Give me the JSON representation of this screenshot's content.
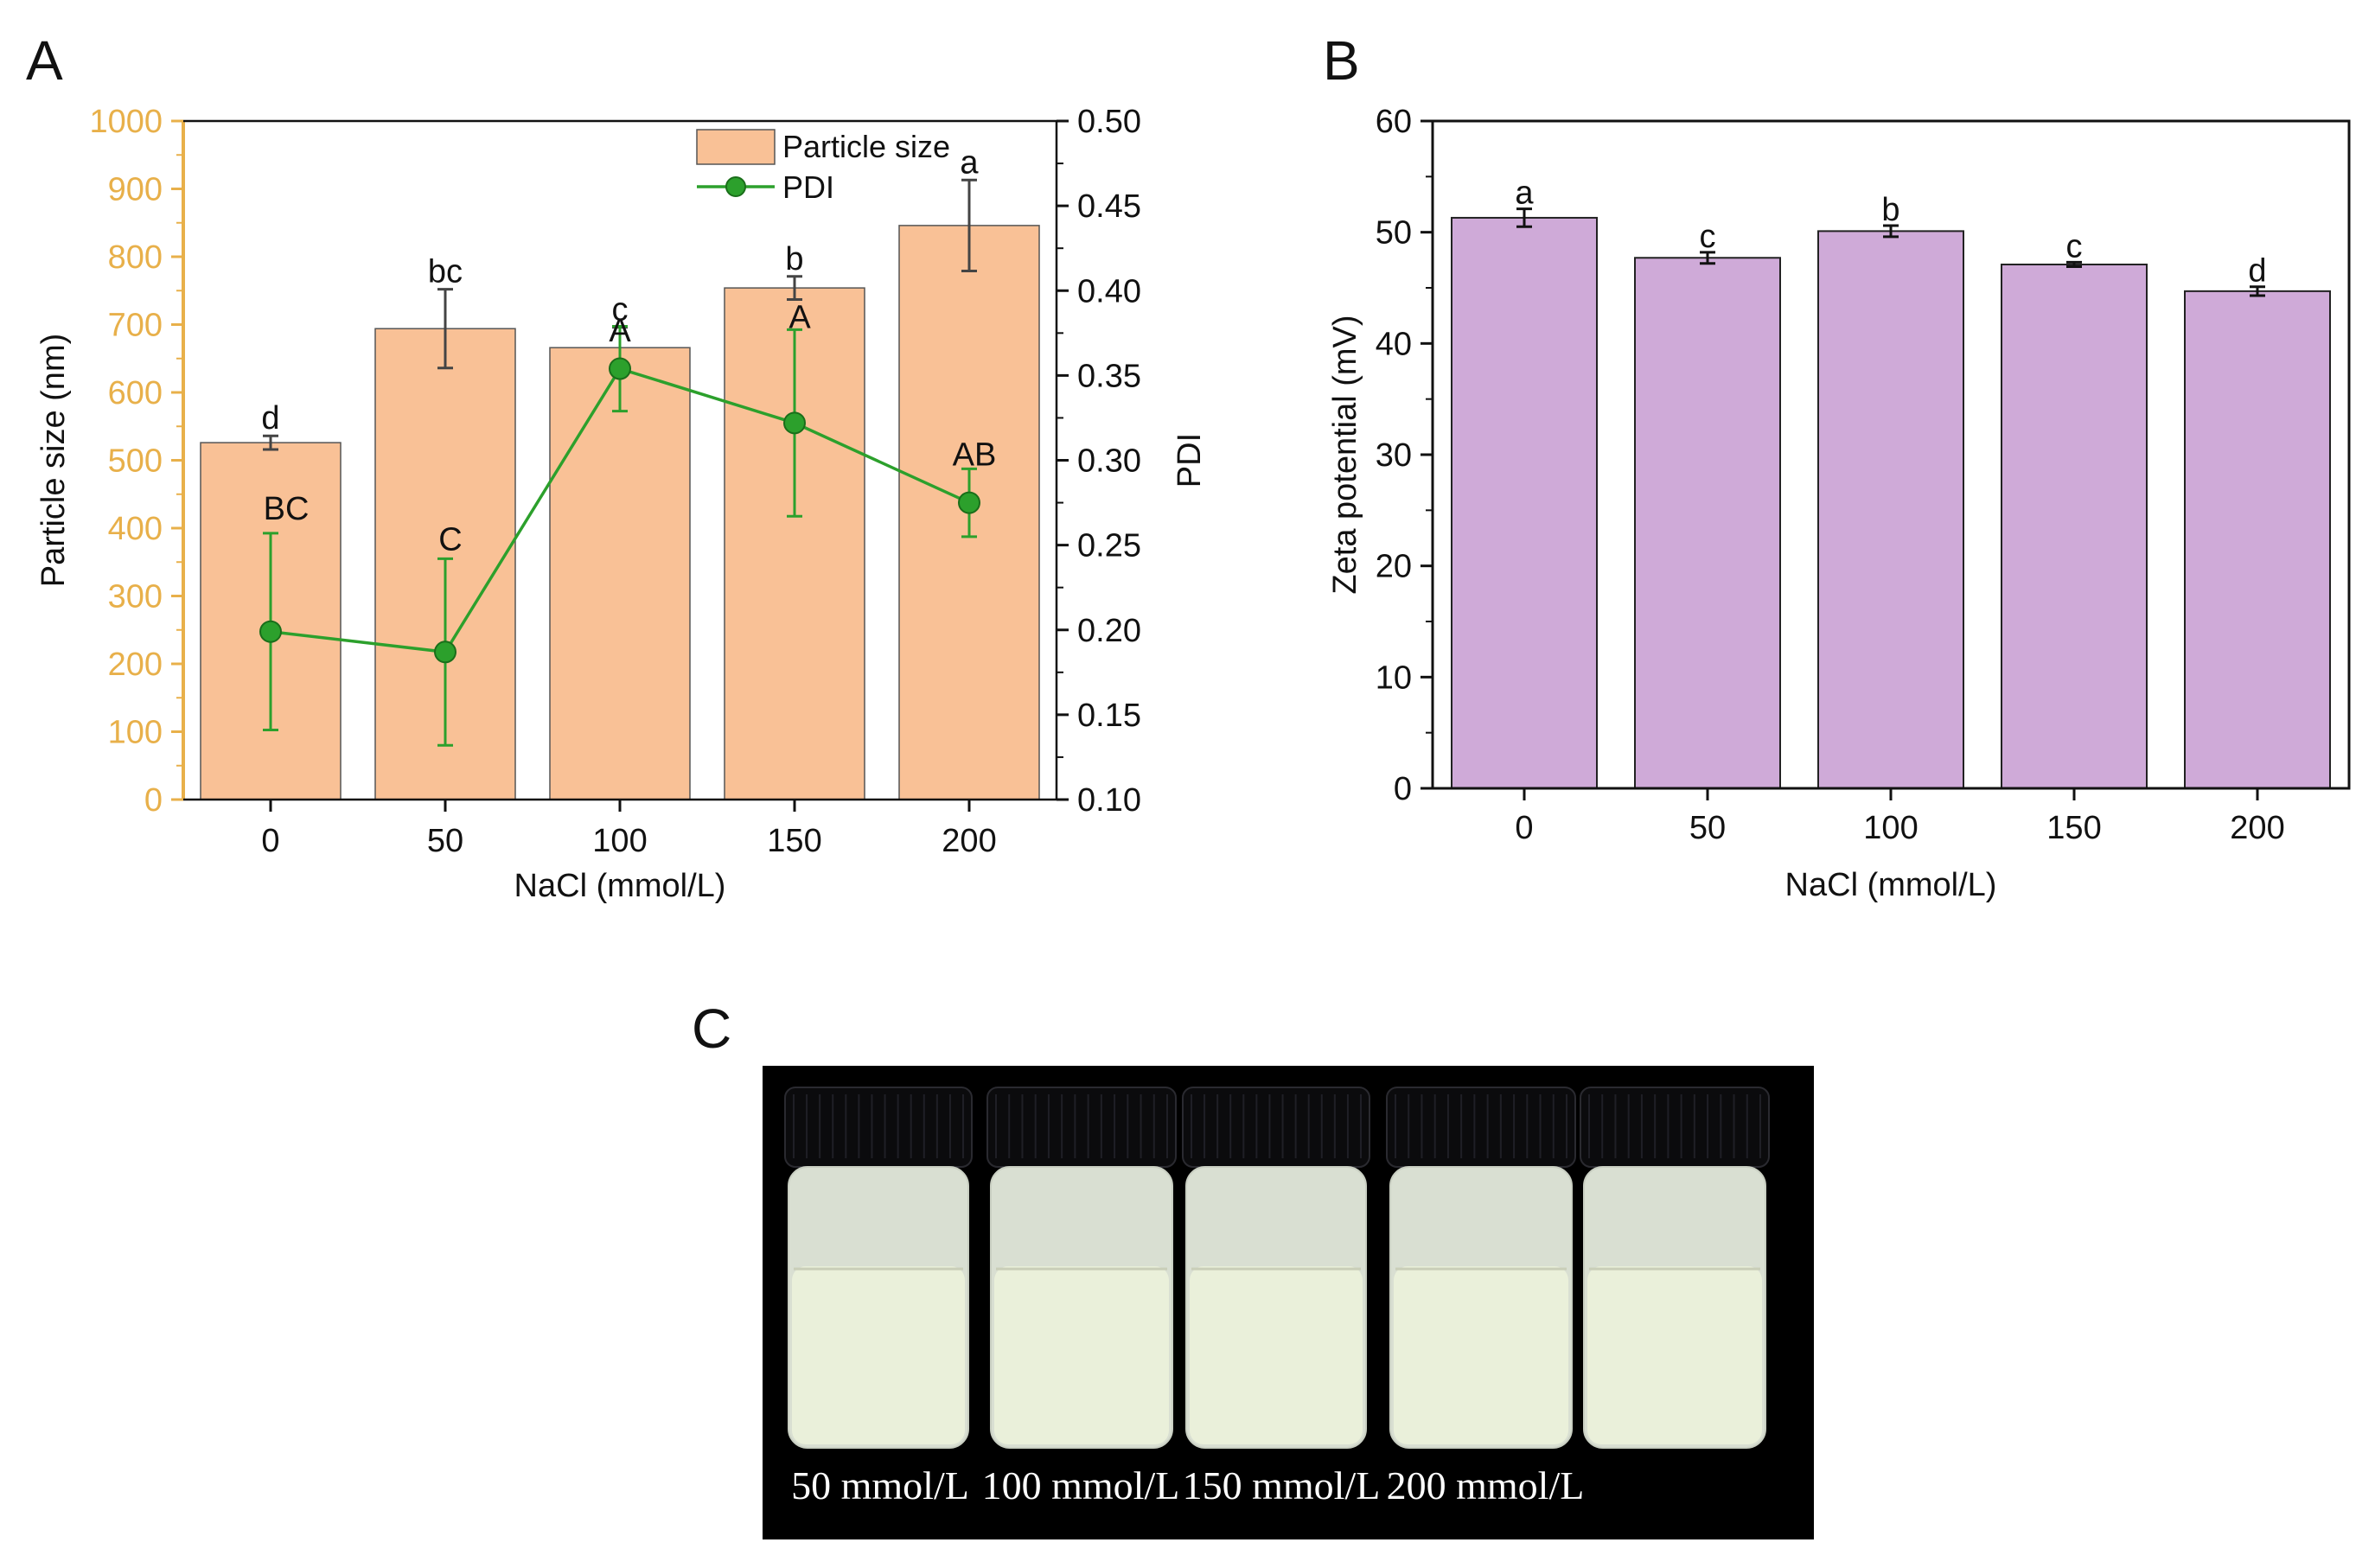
{
  "panels": {
    "a_letter": "A",
    "b_letter": "B",
    "c_letter": "C"
  },
  "chart_data": [
    {
      "panel": "A",
      "type": "bar+line",
      "categories": [
        "0",
        "50",
        "100",
        "150",
        "200"
      ],
      "xlabel": "NaCl (mmol/L)",
      "ylabel_left": "Particle size (nm)",
      "ylabel_right": "PDI",
      "ylim_left": [
        0,
        1000
      ],
      "yticks_left": [
        "0",
        "100",
        "200",
        "300",
        "400",
        "500",
        "600",
        "700",
        "800",
        "900",
        "1000"
      ],
      "ylim_right": [
        0.1,
        0.5
      ],
      "yticks_right": [
        "0.10",
        "0.15",
        "0.20",
        "0.25",
        "0.30",
        "0.35",
        "0.40",
        "0.45",
        "0.50"
      ],
      "left_axis_color": "#e8b04a",
      "legend_position": "top-right",
      "series": [
        {
          "name": "Particle size",
          "kind": "bar",
          "color": "#f9c196",
          "values": [
            526,
            694,
            666,
            754,
            846
          ],
          "errors": [
            10,
            58,
            30,
            17,
            67
          ],
          "labels": [
            "d",
            "bc",
            "c",
            "b",
            "a"
          ]
        },
        {
          "name": "PDI",
          "kind": "line",
          "color": "#2ca02c",
          "values": [
            0.199,
            0.187,
            0.354,
            0.322,
            0.275
          ],
          "errors": [
            0.058,
            0.055,
            0.025,
            0.055,
            0.02
          ],
          "labels": [
            "BC",
            "C",
            "A",
            "A",
            "AB"
          ]
        }
      ]
    },
    {
      "panel": "B",
      "type": "bar",
      "categories": [
        "0",
        "50",
        "100",
        "150",
        "200"
      ],
      "xlabel": "NaCl (mmol/L)",
      "ylabel": "Zeta potential (mV)",
      "ylim": [
        0,
        60
      ],
      "yticks": [
        "0",
        "10",
        "20",
        "30",
        "40",
        "50",
        "60"
      ],
      "series": [
        {
          "name": "",
          "kind": "bar",
          "color": "#cfaad8",
          "values": [
            51.3,
            47.7,
            50.1,
            47.1,
            44.7
          ],
          "errors": [
            0.8,
            0.5,
            0.5,
            0.2,
            0.4
          ],
          "labels": [
            "a",
            "c",
            "b",
            "c",
            "d"
          ]
        }
      ]
    }
  ],
  "photo": {
    "labels": [
      "50 mmol/L",
      "100 mmol/L",
      "150 mmol/L",
      "200 mmol/L"
    ],
    "background_color": "#000000",
    "cap_color": "#0b0b0d",
    "liquid_color": "#eaf0da"
  }
}
